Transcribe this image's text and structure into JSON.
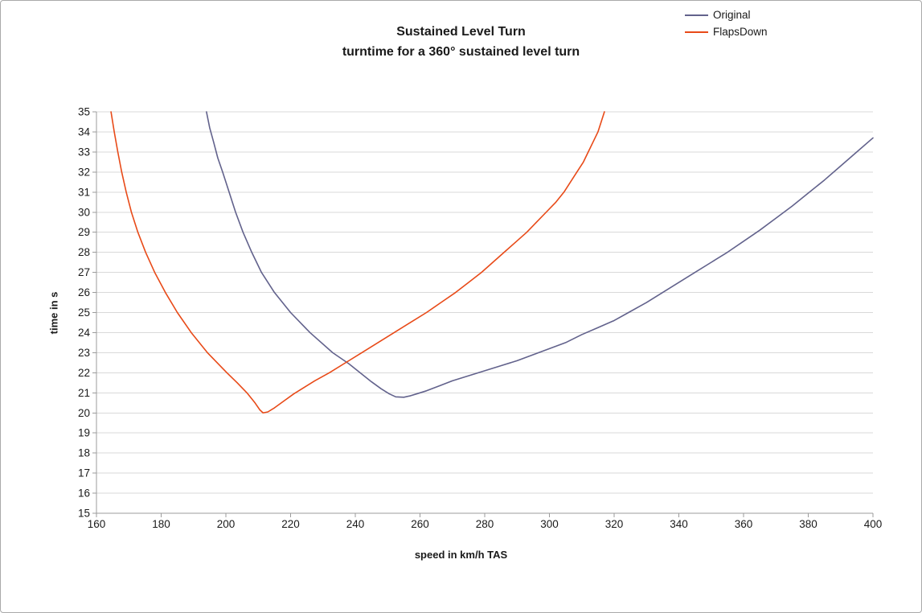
{
  "chart_data": {
    "type": "line",
    "title": "Sustained Level Turn",
    "subtitle": "turntime for a 360° sustained level turn",
    "xlabel": "speed in km/h TAS",
    "ylabel": "time in s",
    "xlim": [
      160,
      400
    ],
    "ylim": [
      15,
      35
    ],
    "x_ticks": [
      160,
      180,
      200,
      220,
      240,
      260,
      280,
      300,
      320,
      340,
      360,
      380,
      400
    ],
    "y_ticks": [
      15,
      16,
      17,
      18,
      19,
      20,
      21,
      22,
      23,
      24,
      25,
      26,
      27,
      28,
      29,
      30,
      31,
      32,
      33,
      34,
      35
    ],
    "grid": "horizontal",
    "grid_color": "#d9d9d9",
    "axis_color": "#9b9b9b",
    "legend_position": "top-right",
    "series": [
      {
        "name": "Original",
        "color": "#62628c",
        "points": [
          [
            194,
            35
          ],
          [
            195,
            34.2
          ],
          [
            196.2,
            33.5
          ],
          [
            197.5,
            32.7
          ],
          [
            199,
            32
          ],
          [
            201,
            31
          ],
          [
            203,
            30
          ],
          [
            205.3,
            29
          ],
          [
            208,
            28
          ],
          [
            211,
            27
          ],
          [
            215,
            26
          ],
          [
            220,
            25
          ],
          [
            226,
            24
          ],
          [
            233,
            23
          ],
          [
            238,
            22.45
          ],
          [
            241.5,
            22
          ],
          [
            245,
            21.55
          ],
          [
            248,
            21.2
          ],
          [
            250.5,
            20.95
          ],
          [
            252.5,
            20.8
          ],
          [
            255,
            20.78
          ],
          [
            257,
            20.85
          ],
          [
            259,
            20.95
          ],
          [
            262,
            21.1
          ],
          [
            266,
            21.35
          ],
          [
            270,
            21.6
          ],
          [
            275,
            21.85
          ],
          [
            280,
            22.1
          ],
          [
            285,
            22.35
          ],
          [
            290,
            22.6
          ],
          [
            295,
            22.9
          ],
          [
            300,
            23.2
          ],
          [
            305,
            23.5
          ],
          [
            310,
            23.9
          ],
          [
            315,
            24.25
          ],
          [
            320,
            24.6
          ],
          [
            325,
            25.05
          ],
          [
            330,
            25.5
          ],
          [
            335,
            26
          ],
          [
            340,
            26.5
          ],
          [
            345,
            27
          ],
          [
            350,
            27.5
          ],
          [
            355,
            28
          ],
          [
            360,
            28.55
          ],
          [
            365,
            29.1
          ],
          [
            370,
            29.7
          ],
          [
            375,
            30.3
          ],
          [
            380,
            30.95
          ],
          [
            385,
            31.6
          ],
          [
            390,
            32.3
          ],
          [
            395,
            33
          ],
          [
            400,
            33.7
          ]
        ]
      },
      {
        "name": "FlapsDown",
        "color": "#e84a18",
        "points": [
          [
            164.5,
            35
          ],
          [
            165.5,
            34
          ],
          [
            166.6,
            33
          ],
          [
            167.8,
            32
          ],
          [
            169.2,
            31
          ],
          [
            170.8,
            30
          ],
          [
            172.8,
            29
          ],
          [
            175.2,
            28
          ],
          [
            178,
            27
          ],
          [
            181.3,
            26
          ],
          [
            185,
            25
          ],
          [
            189.3,
            24
          ],
          [
            194.3,
            23
          ],
          [
            200.3,
            22
          ],
          [
            203.5,
            21.5
          ],
          [
            206.5,
            21
          ],
          [
            209,
            20.5
          ],
          [
            210.5,
            20.15
          ],
          [
            211.5,
            20
          ],
          [
            213,
            20.05
          ],
          [
            215,
            20.25
          ],
          [
            218,
            20.6
          ],
          [
            221,
            20.95
          ],
          [
            224,
            21.25
          ],
          [
            227.5,
            21.6
          ],
          [
            232,
            22
          ],
          [
            237,
            22.5
          ],
          [
            242,
            23
          ],
          [
            247,
            23.5
          ],
          [
            252,
            24
          ],
          [
            257,
            24.5
          ],
          [
            262,
            25
          ],
          [
            266.5,
            25.5
          ],
          [
            271,
            26
          ],
          [
            275,
            26.5
          ],
          [
            279,
            27
          ],
          [
            282.5,
            27.5
          ],
          [
            286,
            28
          ],
          [
            289.5,
            28.5
          ],
          [
            293,
            29
          ],
          [
            296,
            29.5
          ],
          [
            299,
            30
          ],
          [
            302,
            30.5
          ],
          [
            304.5,
            31
          ],
          [
            306.5,
            31.5
          ],
          [
            308.5,
            32
          ],
          [
            310.5,
            32.5
          ],
          [
            312,
            33
          ],
          [
            313.5,
            33.5
          ],
          [
            315,
            34
          ],
          [
            316,
            34.5
          ],
          [
            317,
            35
          ]
        ]
      }
    ]
  }
}
